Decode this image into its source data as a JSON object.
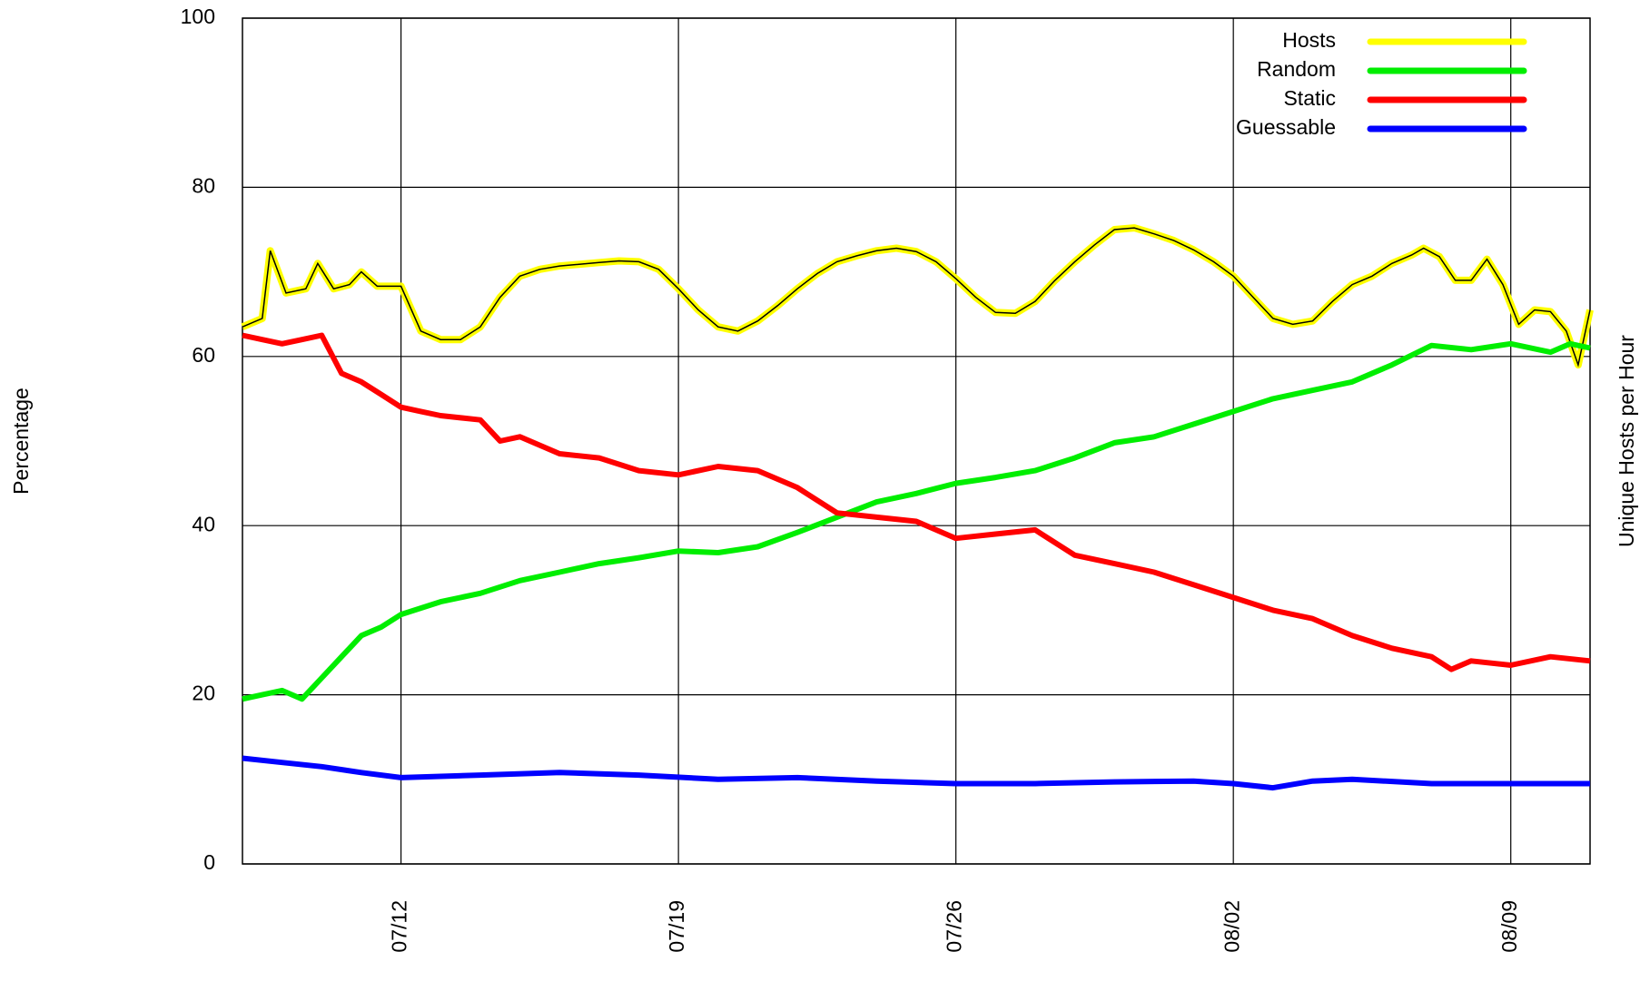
{
  "chart_data": {
    "type": "line",
    "ylabel": "Percentage",
    "y2label": "Unique Hosts per Hour",
    "xlim": [
      8,
      42
    ],
    "xticks": [
      {
        "value": 12,
        "label": "07/12"
      },
      {
        "value": 19,
        "label": "07/19"
      },
      {
        "value": 26,
        "label": "07/26"
      },
      {
        "value": 33,
        "label": "08/02"
      },
      {
        "value": 40,
        "label": "08/09"
      }
    ],
    "ylim": [
      0,
      100
    ],
    "yticks": [
      0,
      20,
      40,
      60,
      80,
      100
    ],
    "grid": true,
    "legend": "top-right",
    "series": [
      {
        "name": "Hosts",
        "color": "#ffff00",
        "x": [
          8,
          8.5,
          8.7,
          9.1,
          9.6,
          9.9,
          10.3,
          10.7,
          11,
          11.4,
          12,
          12.5,
          13,
          13.5,
          14,
          14.5,
          15,
          15.5,
          16,
          17,
          17.5,
          18,
          18.5,
          19,
          19.5,
          20,
          20.5,
          21,
          21.5,
          22,
          22.5,
          23,
          23.5,
          24,
          24.5,
          25,
          25.5,
          26,
          26.5,
          27,
          27.5,
          28,
          28.5,
          29,
          29.5,
          30,
          30.5,
          31,
          31.5,
          32,
          32.5,
          33,
          33.5,
          34,
          34.5,
          35,
          35.5,
          36,
          36.5,
          37,
          37.5,
          37.8,
          38.2,
          38.6,
          39,
          39.4,
          39.8,
          40.2,
          40.6,
          41,
          41.4,
          41.7,
          42
        ],
        "values": [
          63.5,
          64.5,
          72.5,
          67.5,
          68,
          71,
          68,
          68.5,
          70,
          68.3,
          68.3,
          63,
          62,
          62,
          63.5,
          67,
          69.5,
          70.3,
          70.7,
          71.1,
          71.3,
          71.2,
          70.3,
          68,
          65.5,
          63.5,
          63,
          64.2,
          66,
          68,
          69.8,
          71.2,
          71.9,
          72.5,
          72.8,
          72.4,
          71.2,
          69.2,
          67,
          65.2,
          65.1,
          66.5,
          69,
          71.2,
          73.2,
          75,
          75.2,
          74.5,
          73.7,
          72.6,
          71.2,
          69.5,
          67,
          64.5,
          63.8,
          64.2,
          66.5,
          68.5,
          69.5,
          71,
          72,
          72.8,
          71.8,
          69,
          69,
          71.5,
          68.5,
          63.8,
          65.5,
          65.3,
          63,
          59,
          65.5
        ]
      },
      {
        "name": "Random",
        "color": "#00ee00",
        "x": [
          8,
          8.5,
          9,
          9.5,
          10,
          10.5,
          11,
          11.5,
          12,
          13,
          14,
          15,
          16,
          17,
          18,
          19,
          20,
          21,
          22,
          23,
          24,
          25,
          26,
          27,
          28,
          29,
          30,
          31,
          32,
          33,
          34,
          35,
          36,
          37,
          38,
          39,
          40,
          41,
          41.5,
          42
        ],
        "values": [
          19.5,
          20,
          20.5,
          19.5,
          22,
          24.5,
          27,
          28,
          29.5,
          31,
          32,
          33.5,
          34.5,
          35.5,
          36.2,
          37,
          36.8,
          37.5,
          39.2,
          41,
          42.8,
          43.8,
          45,
          45.7,
          46.5,
          48,
          49.8,
          50.5,
          52,
          53.5,
          55,
          56,
          57,
          59,
          61.3,
          60.8,
          61.5,
          60.5,
          61.5,
          61
        ]
      },
      {
        "name": "Static",
        "color": "#ff0000",
        "x": [
          8,
          8.5,
          9,
          9.5,
          10,
          10.5,
          11,
          11.5,
          12,
          12.5,
          13,
          14,
          14.5,
          15,
          16,
          17,
          18,
          19,
          20,
          21,
          22,
          23,
          24,
          25,
          26,
          27,
          28,
          29,
          30,
          31,
          32,
          33,
          34,
          35,
          36,
          37,
          38,
          38.5,
          39,
          40,
          41,
          42
        ],
        "values": [
          62.5,
          62,
          61.5,
          62,
          62.5,
          58,
          57,
          55.5,
          54,
          53.5,
          53,
          52.5,
          50,
          50.5,
          48.5,
          48,
          46.5,
          46,
          47,
          46.5,
          44.5,
          41.5,
          41,
          40.5,
          38.5,
          39,
          39.5,
          36.5,
          35.5,
          34.5,
          33,
          31.5,
          30,
          29,
          27,
          25.5,
          24.5,
          23,
          24,
          23.5,
          24.5,
          24
        ]
      },
      {
        "name": "Guessable",
        "color": "#0000ff",
        "x": [
          8,
          9,
          10,
          11,
          12,
          14,
          16,
          18,
          20,
          22,
          24,
          26,
          28,
          30,
          32,
          33,
          34,
          35,
          36,
          38,
          40,
          42
        ],
        "values": [
          12.5,
          12,
          11.5,
          10.8,
          10.2,
          10.5,
          10.8,
          10.5,
          10,
          10.2,
          9.8,
          9.5,
          9.5,
          9.7,
          9.8,
          9.5,
          9,
          9.8,
          10,
          9.5,
          9.5,
          9.5
        ]
      }
    ]
  }
}
